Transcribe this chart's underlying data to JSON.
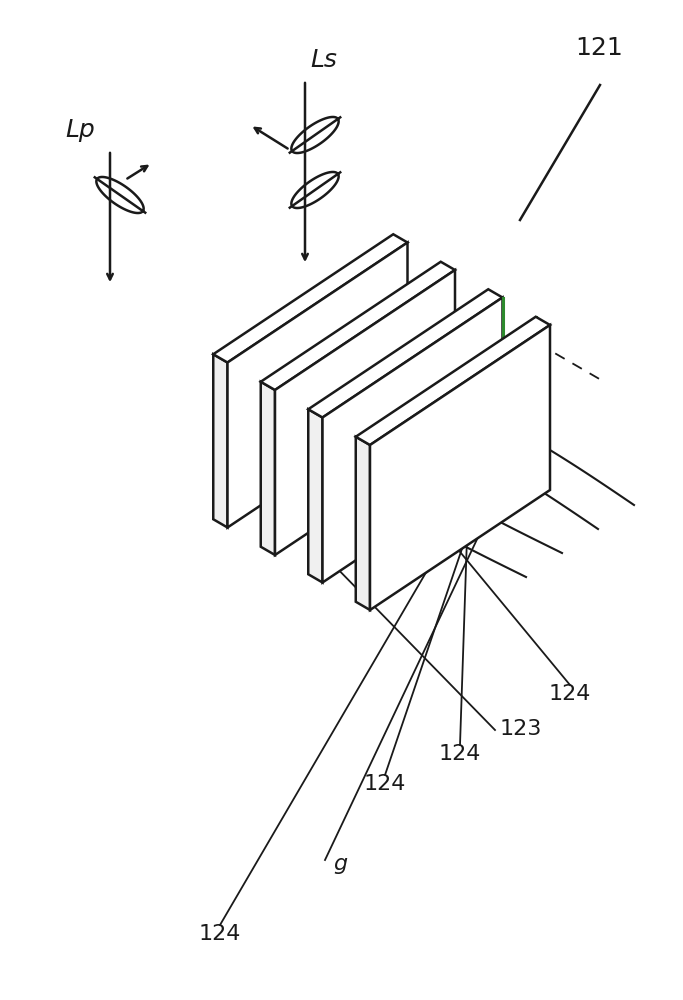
{
  "bg_color": "#ffffff",
  "line_color": "#1a1a1a",
  "lp_label": "Lp",
  "ls_label": "Ls",
  "label_121": "121",
  "label_123": "123",
  "label_124": "124",
  "label_g": "g",
  "green_line_color": "#2d8a2d",
  "gray_face": "#f0f0f0",
  "white_face": "#ffffff"
}
